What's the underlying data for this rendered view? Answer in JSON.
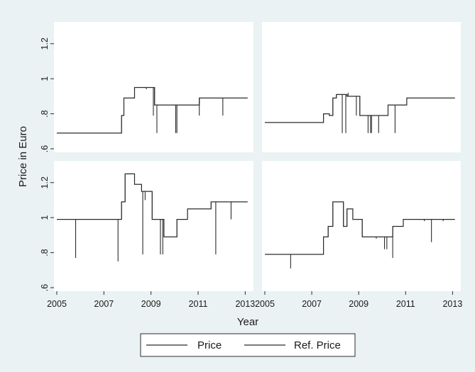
{
  "ylabel": "Price in Euro",
  "xlabel": "Year",
  "legend": {
    "placement": "bottom",
    "entries": [
      "Price",
      "Ref. Price"
    ]
  },
  "colors": {
    "background": "#eaf2f3",
    "panel": "#ffffff",
    "line": "#2b2b2b"
  },
  "chart_data": [
    {
      "type": "line",
      "panel": "top-left",
      "xlim": [
        2005,
        2013.2
      ],
      "ylim": [
        0.6,
        1.3
      ],
      "xticks": [
        "2005",
        "2007",
        "2009",
        "2011",
        "2013"
      ],
      "yticks": [
        ".6",
        ".8",
        "1",
        "1.2"
      ],
      "grid": false,
      "series": [
        {
          "name": "Price",
          "step": [
            [
              2005,
              0.69
            ],
            [
              2007.75,
              0.79
            ],
            [
              2007.85,
              0.89
            ],
            [
              2008.3,
              0.95
            ],
            [
              2009.15,
              0.85
            ],
            [
              2011.05,
              0.89
            ],
            [
              2013.1,
              0.89
            ]
          ],
          "dips": [
            [
              2009.1,
              0.79
            ],
            [
              2009.25,
              0.69
            ],
            [
              2010.05,
              0.69
            ],
            [
              2010.1,
              0.69
            ],
            [
              2011.05,
              0.79
            ],
            [
              2012.05,
              0.79
            ]
          ]
        },
        {
          "name": "Ref. Price",
          "step": [
            [
              2005,
              0.69
            ],
            [
              2007.75,
              0.79
            ],
            [
              2007.85,
              0.89
            ],
            [
              2008.3,
              0.95
            ],
            [
              2009.15,
              0.85
            ],
            [
              2011.05,
              0.89
            ],
            [
              2013.1,
              0.89
            ]
          ],
          "dips": [
            [
              2008.8,
              0.94
            ]
          ]
        }
      ]
    },
    {
      "type": "line",
      "panel": "top-right",
      "xlim": [
        2005,
        2013.2
      ],
      "ylim": [
        0.6,
        1.3
      ],
      "xticks": [
        "2005",
        "2007",
        "2009",
        "2011",
        "2013"
      ],
      "yticks": [
        ".6",
        ".8",
        "1",
        "1.2"
      ],
      "grid": false,
      "series": [
        {
          "name": "Price",
          "step": [
            [
              2005,
              0.75
            ],
            [
              2007.5,
              0.8
            ],
            [
              2007.75,
              0.79
            ],
            [
              2007.9,
              0.89
            ],
            [
              2008.05,
              0.91
            ],
            [
              2008.5,
              0.9
            ],
            [
              2009.05,
              0.79
            ],
            [
              2010.25,
              0.85
            ],
            [
              2011.05,
              0.89
            ],
            [
              2013.1,
              0.89
            ]
          ],
          "dips": [
            [
              2008.3,
              0.69
            ],
            [
              2008.45,
              0.69
            ],
            [
              2008.55,
              0.92
            ],
            [
              2008.9,
              0.79
            ],
            [
              2009.4,
              0.69
            ],
            [
              2009.5,
              0.69
            ],
            [
              2009.55,
              0.69
            ],
            [
              2009.85,
              0.69
            ],
            [
              2010.55,
              0.69
            ]
          ]
        },
        {
          "name": "Ref. Price",
          "step": [
            [
              2005,
              0.75
            ],
            [
              2007.5,
              0.8
            ],
            [
              2007.75,
              0.79
            ],
            [
              2007.9,
              0.89
            ],
            [
              2008.05,
              0.91
            ],
            [
              2008.5,
              0.9
            ],
            [
              2009.05,
              0.79
            ],
            [
              2010.25,
              0.85
            ],
            [
              2011.05,
              0.89
            ],
            [
              2013.1,
              0.89
            ]
          ],
          "dips": []
        }
      ]
    },
    {
      "type": "line",
      "panel": "bottom-left",
      "xlim": [
        2005,
        2013.2
      ],
      "ylim": [
        0.6,
        1.3
      ],
      "xticks": [
        "2005",
        "2007",
        "2009",
        "2011",
        "2013"
      ],
      "yticks": [
        ".6",
        ".8",
        "1",
        "1.2"
      ],
      "grid": false,
      "series": [
        {
          "name": "Price",
          "step": [
            [
              2005,
              0.99
            ],
            [
              2007.75,
              1.09
            ],
            [
              2007.9,
              1.25
            ],
            [
              2008.3,
              1.19
            ],
            [
              2008.6,
              1.15
            ],
            [
              2009.05,
              0.99
            ],
            [
              2009.55,
              0.89
            ],
            [
              2010.1,
              0.99
            ],
            [
              2010.55,
              1.05
            ],
            [
              2011.55,
              1.09
            ],
            [
              2013.1,
              1.09
            ]
          ],
          "dips": [
            [
              2005.8,
              0.77
            ],
            [
              2007.6,
              0.75
            ],
            [
              2008.65,
              0.79
            ],
            [
              2009.4,
              0.79
            ],
            [
              2009.5,
              0.79
            ],
            [
              2011.75,
              0.79
            ],
            [
              2012.4,
              0.99
            ]
          ]
        },
        {
          "name": "Ref. Price",
          "step": [
            [
              2005,
              0.99
            ],
            [
              2007.75,
              1.09
            ],
            [
              2007.9,
              1.25
            ],
            [
              2008.3,
              1.19
            ],
            [
              2008.6,
              1.15
            ],
            [
              2009.05,
              0.99
            ],
            [
              2009.55,
              0.89
            ],
            [
              2010.1,
              0.99
            ],
            [
              2010.55,
              1.05
            ],
            [
              2011.55,
              1.09
            ],
            [
              2013.1,
              1.09
            ]
          ],
          "dips": [
            [
              2008.75,
              1.1
            ]
          ]
        }
      ]
    },
    {
      "type": "line",
      "panel": "bottom-right",
      "xlim": [
        2005,
        2013.2
      ],
      "ylim": [
        0.6,
        1.3
      ],
      "xticks": [
        "2005",
        "2007",
        "2009",
        "2011",
        "2013"
      ],
      "yticks": [
        ".6",
        ".8",
        "1",
        "1.2"
      ],
      "grid": false,
      "series": [
        {
          "name": "Price",
          "step": [
            [
              2005,
              0.79
            ],
            [
              2007.5,
              0.89
            ],
            [
              2007.7,
              0.95
            ],
            [
              2007.9,
              1.09
            ],
            [
              2008.35,
              0.95
            ],
            [
              2008.5,
              1.05
            ],
            [
              2008.75,
              0.99
            ],
            [
              2009.15,
              0.89
            ],
            [
              2010.25,
              0.89
            ],
            [
              2010.45,
              0.95
            ],
            [
              2010.9,
              0.99
            ],
            [
              2013.1,
              0.99
            ]
          ],
          "dips": [
            [
              2006.1,
              0.71
            ],
            [
              2010.1,
              0.82
            ],
            [
              2010.2,
              0.82
            ],
            [
              2010.45,
              0.77
            ],
            [
              2012.1,
              0.86
            ]
          ]
        },
        {
          "name": "Ref. Price",
          "step": [
            [
              2005,
              0.79
            ],
            [
              2007.5,
              0.89
            ],
            [
              2007.7,
              0.95
            ],
            [
              2007.9,
              1.09
            ],
            [
              2008.35,
              0.95
            ],
            [
              2008.5,
              1.05
            ],
            [
              2008.75,
              0.99
            ],
            [
              2009.15,
              0.89
            ],
            [
              2010.25,
              0.89
            ],
            [
              2010.45,
              0.95
            ],
            [
              2010.9,
              0.99
            ],
            [
              2013.1,
              0.99
            ]
          ],
          "dips": [
            [
              2009.75,
              0.88
            ],
            [
              2011.8,
              0.98
            ],
            [
              2012.6,
              0.98
            ]
          ]
        }
      ]
    }
  ]
}
